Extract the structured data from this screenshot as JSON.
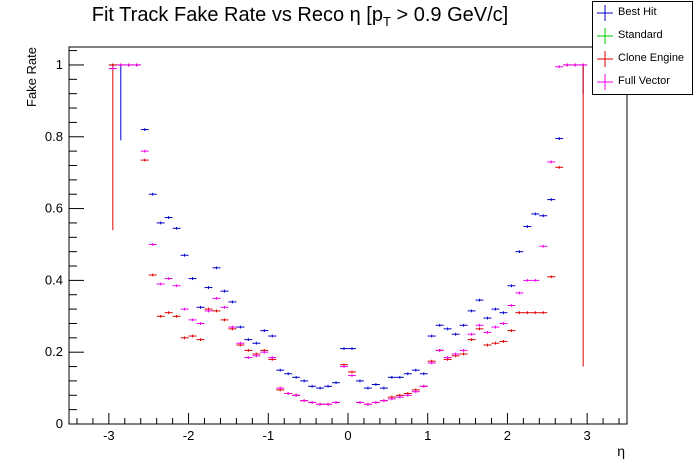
{
  "chart_data": {
    "type": "scatter",
    "title_main": "Fit Track Fake Rate vs Reco η [p",
    "title_sub": "T",
    "title_tail": " > 0.9 GeV/c]",
    "xlabel": "η",
    "ylabel": "Fake Rate",
    "xlim": [
      -3.5,
      3.5
    ],
    "ylim": [
      0,
      1.05
    ],
    "x_ticks": [
      -3,
      -2,
      -1,
      0,
      1,
      2,
      3
    ],
    "x_tick_labels": [
      "-3",
      "-2",
      "-1",
      "0",
      "1",
      "2",
      "3"
    ],
    "y_ticks": [
      0,
      0.2,
      0.4,
      0.6,
      0.8,
      1
    ],
    "y_tick_labels": [
      "0",
      "0.2",
      "0.4",
      "0.6",
      "0.8",
      "1"
    ],
    "grid": false,
    "legend_position": "top-right",
    "x_bin_half_width": 0.05,
    "series": [
      {
        "name": "Best Hit",
        "color": "#0000cc",
        "x": [
          -2.95,
          -2.85,
          -2.75,
          -2.65,
          -2.55,
          -2.45,
          -2.35,
          -2.25,
          -2.15,
          -2.05,
          -1.95,
          -1.85,
          -1.75,
          -1.65,
          -1.55,
          -1.45,
          -1.35,
          -1.25,
          -1.15,
          -1.05,
          -0.95,
          -0.85,
          -0.75,
          -0.65,
          -0.55,
          -0.45,
          -0.35,
          -0.25,
          -0.15,
          -0.05,
          0.05,
          0.15,
          0.25,
          0.35,
          0.45,
          0.55,
          0.65,
          0.75,
          0.85,
          0.95,
          1.05,
          1.15,
          1.25,
          1.35,
          1.45,
          1.55,
          1.65,
          1.75,
          1.85,
          1.95,
          2.05,
          2.15,
          2.25,
          2.35,
          2.45,
          2.55,
          2.65,
          2.75,
          2.85,
          2.95
        ],
        "y": [
          1.0,
          1.0,
          1.0,
          1.0,
          0.82,
          0.64,
          0.56,
          0.575,
          0.545,
          0.47,
          0.405,
          0.325,
          0.38,
          0.435,
          0.37,
          0.34,
          0.27,
          0.235,
          0.225,
          0.26,
          0.245,
          0.15,
          0.14,
          0.13,
          0.12,
          0.105,
          0.1,
          0.105,
          0.115,
          0.21,
          0.21,
          0.12,
          0.1,
          0.11,
          0.1,
          0.13,
          0.13,
          0.14,
          0.15,
          0.14,
          0.245,
          0.275,
          0.265,
          0.25,
          0.275,
          0.315,
          0.345,
          0.295,
          0.32,
          0.31,
          0.385,
          0.48,
          0.55,
          0.585,
          0.58,
          0.625,
          0.795,
          1.0,
          1.0,
          1.0
        ],
        "yerr_low": [
          0,
          0.21,
          0,
          0,
          0,
          0,
          0,
          0,
          0,
          0,
          0,
          0,
          0,
          0,
          0,
          0,
          0,
          0,
          0,
          0,
          0,
          0,
          0,
          0,
          0,
          0,
          0,
          0,
          0,
          0,
          0,
          0,
          0,
          0,
          0,
          0,
          0,
          0,
          0,
          0,
          0,
          0,
          0,
          0,
          0,
          0,
          0,
          0,
          0,
          0,
          0,
          0,
          0,
          0,
          0,
          0,
          0,
          0,
          0,
          0.08
        ]
      },
      {
        "name": "Standard",
        "color": "#00cc00",
        "x": [],
        "y": []
      },
      {
        "name": "Clone Engine",
        "color": "#dd0000",
        "x": [
          -2.95,
          -2.85,
          -2.75,
          -2.65,
          -2.55,
          -2.45,
          -2.35,
          -2.25,
          -2.15,
          -2.05,
          -1.95,
          -1.85,
          -1.75,
          -1.65,
          -1.55,
          -1.45,
          -1.35,
          -1.25,
          -1.15,
          -1.05,
          -0.95,
          -0.85,
          -0.75,
          -0.65,
          -0.55,
          -0.45,
          -0.35,
          -0.25,
          -0.15,
          -0.05,
          0.05,
          0.15,
          0.25,
          0.35,
          0.45,
          0.55,
          0.65,
          0.75,
          0.85,
          0.95,
          1.05,
          1.15,
          1.25,
          1.35,
          1.45,
          1.55,
          1.65,
          1.75,
          1.85,
          1.95,
          2.05,
          2.15,
          2.25,
          2.35,
          2.45,
          2.55,
          2.65,
          2.75,
          2.85,
          2.95
        ],
        "y": [
          1.0,
          1.0,
          1.0,
          1.0,
          0.735,
          0.415,
          0.3,
          0.31,
          0.3,
          0.24,
          0.245,
          0.235,
          0.32,
          0.315,
          0.29,
          0.265,
          0.22,
          0.205,
          0.195,
          0.205,
          0.18,
          0.095,
          0.085,
          0.08,
          0.065,
          0.06,
          0.055,
          0.055,
          0.06,
          0.165,
          0.145,
          0.06,
          0.055,
          0.06,
          0.065,
          0.075,
          0.08,
          0.085,
          0.095,
          0.105,
          0.175,
          0.205,
          0.18,
          0.19,
          0.195,
          0.235,
          0.265,
          0.22,
          0.225,
          0.23,
          0.26,
          0.31,
          0.31,
          0.31,
          0.31,
          0.41,
          0.715,
          1.0,
          1.0,
          1.0
        ],
        "yerr_low": [
          0.46,
          0,
          0,
          0,
          0,
          0,
          0,
          0,
          0,
          0,
          0,
          0,
          0,
          0,
          0,
          0,
          0,
          0,
          0,
          0,
          0,
          0,
          0,
          0,
          0,
          0,
          0,
          0,
          0,
          0,
          0,
          0,
          0,
          0,
          0,
          0,
          0,
          0,
          0,
          0,
          0,
          0,
          0,
          0,
          0,
          0,
          0,
          0,
          0,
          0,
          0,
          0,
          0,
          0,
          0,
          0,
          0,
          0,
          0,
          0.84
        ]
      },
      {
        "name": "Full Vector",
        "color": "#ee00ee",
        "x": [
          -2.95,
          -2.85,
          -2.75,
          -2.65,
          -2.55,
          -2.45,
          -2.35,
          -2.25,
          -2.15,
          -2.05,
          -1.95,
          -1.85,
          -1.75,
          -1.65,
          -1.55,
          -1.45,
          -1.35,
          -1.25,
          -1.15,
          -1.05,
          -0.95,
          -0.85,
          -0.75,
          -0.65,
          -0.55,
          -0.45,
          -0.35,
          -0.25,
          -0.15,
          -0.05,
          0.05,
          0.15,
          0.25,
          0.35,
          0.45,
          0.55,
          0.65,
          0.75,
          0.85,
          0.95,
          1.05,
          1.15,
          1.25,
          1.35,
          1.45,
          1.55,
          1.65,
          1.75,
          1.85,
          1.95,
          2.05,
          2.15,
          2.25,
          2.35,
          2.45,
          2.55,
          2.65,
          2.75,
          2.85,
          2.95
        ],
        "y": [
          0.99,
          1.0,
          1.0,
          1.0,
          0.76,
          0.5,
          0.39,
          0.405,
          0.385,
          0.32,
          0.29,
          0.28,
          0.315,
          0.35,
          0.325,
          0.27,
          0.225,
          0.185,
          0.19,
          0.2,
          0.185,
          0.1,
          0.085,
          0.08,
          0.065,
          0.06,
          0.055,
          0.055,
          0.06,
          0.16,
          0.135,
          0.06,
          0.055,
          0.06,
          0.065,
          0.07,
          0.075,
          0.08,
          0.09,
          0.105,
          0.17,
          0.205,
          0.185,
          0.195,
          0.205,
          0.25,
          0.275,
          0.255,
          0.27,
          0.28,
          0.33,
          0.365,
          0.4,
          0.4,
          0.495,
          0.73,
          0.995,
          1.0,
          1.0,
          1.0
        ],
        "yerr_low": [
          0,
          0,
          0,
          0,
          0,
          0,
          0,
          0,
          0,
          0,
          0,
          0,
          0,
          0,
          0,
          0,
          0,
          0,
          0,
          0,
          0,
          0,
          0,
          0,
          0,
          0,
          0,
          0,
          0,
          0,
          0,
          0,
          0,
          0,
          0,
          0,
          0,
          0,
          0,
          0,
          0,
          0,
          0,
          0,
          0,
          0,
          0,
          0,
          0,
          0,
          0,
          0,
          0,
          0,
          0,
          0,
          0,
          0,
          0,
          0
        ]
      }
    ]
  }
}
